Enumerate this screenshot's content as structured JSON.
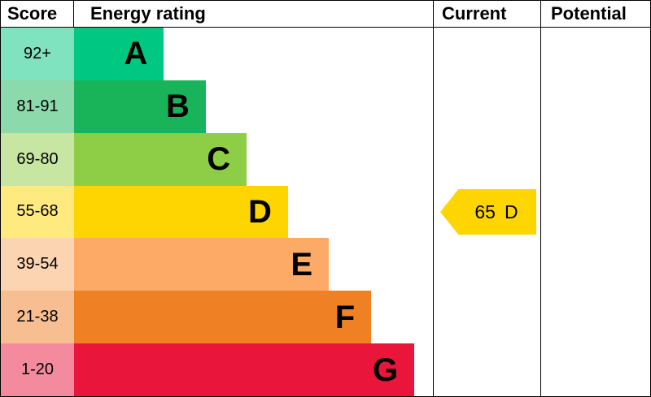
{
  "header": {
    "score": "Score",
    "energy_rating": "Energy rating",
    "current": "Current",
    "potential": "Potential"
  },
  "chart_data": {
    "type": "bar",
    "title": "Energy rating",
    "columns": [
      "Score",
      "Energy rating",
      "Current",
      "Potential"
    ],
    "categories": [
      "A",
      "B",
      "C",
      "D",
      "E",
      "F",
      "G"
    ],
    "bands": [
      {
        "letter": "A",
        "score_range": "92+",
        "color": "#00c781",
        "score_bg": "#80e3c0",
        "bar_width_pct": 25.0
      },
      {
        "letter": "B",
        "score_range": "81-91",
        "color": "#19b459",
        "score_bg": "#8cd9ac",
        "bar_width_pct": 36.7
      },
      {
        "letter": "C",
        "score_range": "69-80",
        "color": "#8dce46",
        "score_bg": "#c6e6a2",
        "bar_width_pct": 48.1
      },
      {
        "letter": "D",
        "score_range": "55-68",
        "color": "#ffd500",
        "score_bg": "#ffea80",
        "bar_width_pct": 59.6
      },
      {
        "letter": "E",
        "score_range": "39-54",
        "color": "#fcaa65",
        "score_bg": "#fdd4b2",
        "bar_width_pct": 71.0
      },
      {
        "letter": "F",
        "score_range": "21-38",
        "color": "#ef8023",
        "score_bg": "#f7bf91",
        "bar_width_pct": 82.8
      },
      {
        "letter": "G",
        "score_range": "1-20",
        "color": "#e9153b",
        "score_bg": "#f48a9d",
        "bar_width_pct": 94.8
      }
    ],
    "current": {
      "value": "65",
      "letter": "D",
      "band_index": 3,
      "color": "#ffd500"
    }
  }
}
